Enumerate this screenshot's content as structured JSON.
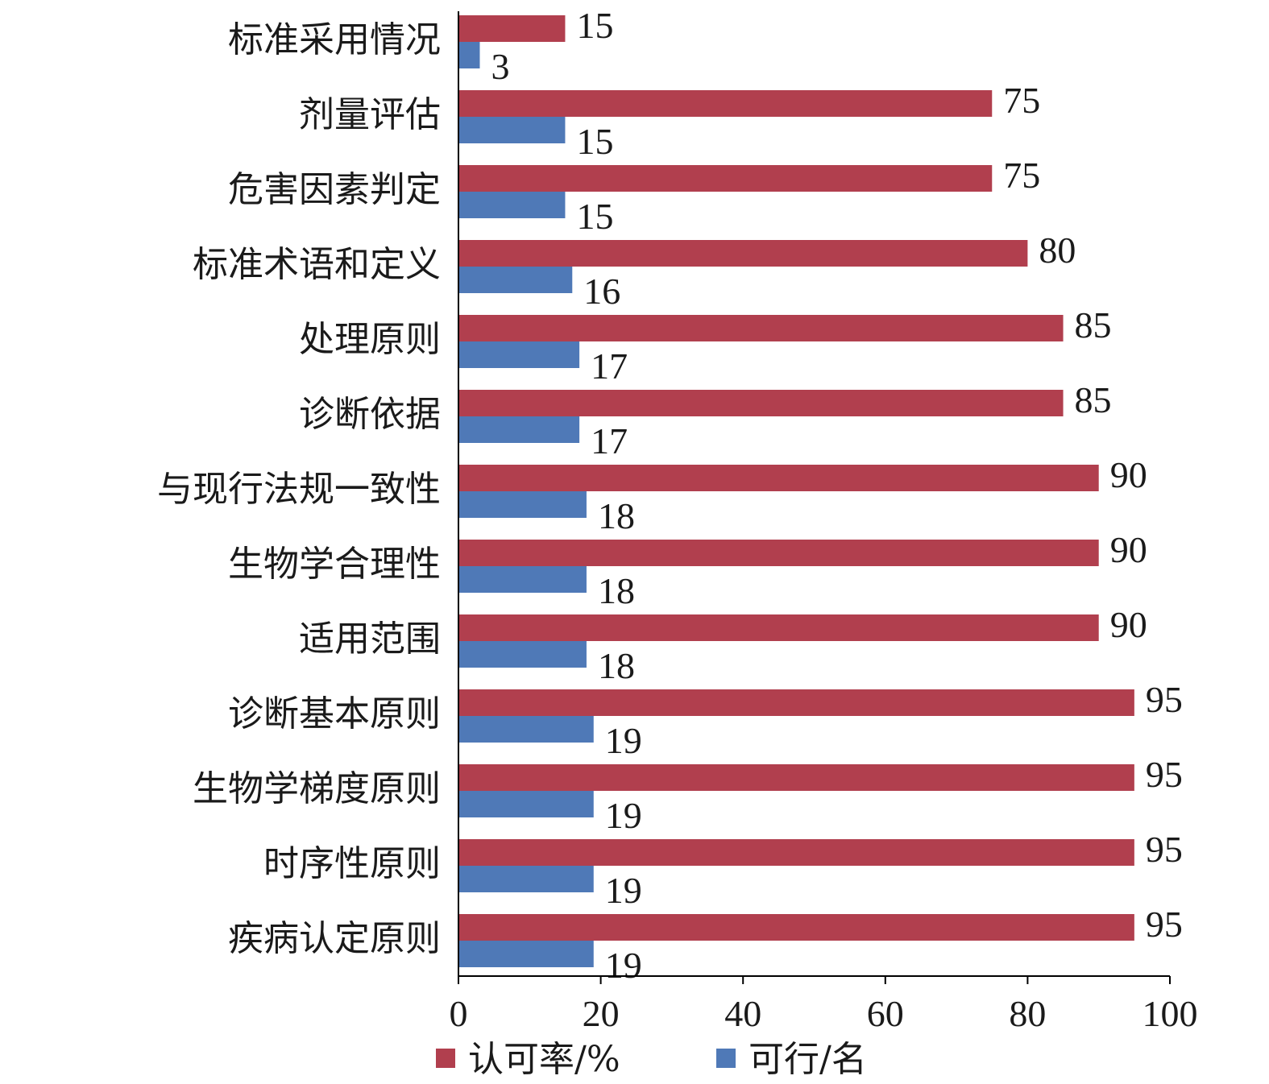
{
  "chart_data": {
    "type": "bar",
    "orientation": "horizontal",
    "categories": [
      "标准采用情况",
      "剂量评估",
      "危害因素判定",
      "标准术语和定义",
      "处理原则",
      "诊断依据",
      "与现行法规一致性",
      "生物学合理性",
      "适用范围",
      "诊断基本原则",
      "生物学梯度原则",
      "时序性原则",
      "疾病认定原则"
    ],
    "series": [
      {
        "name": "认可率/%",
        "color": "#b13f4e",
        "values": [
          15,
          75,
          75,
          80,
          85,
          85,
          90,
          90,
          90,
          95,
          95,
          95,
          95
        ]
      },
      {
        "name": "可行/名",
        "color": "#4f79b7",
        "values": [
          3,
          15,
          15,
          16,
          17,
          17,
          18,
          18,
          18,
          19,
          19,
          19,
          19
        ]
      }
    ],
    "xlim": [
      0,
      100
    ],
    "xticks": [
      0,
      20,
      40,
      60,
      80,
      100
    ],
    "grid": false,
    "legend_position": "bottom"
  }
}
